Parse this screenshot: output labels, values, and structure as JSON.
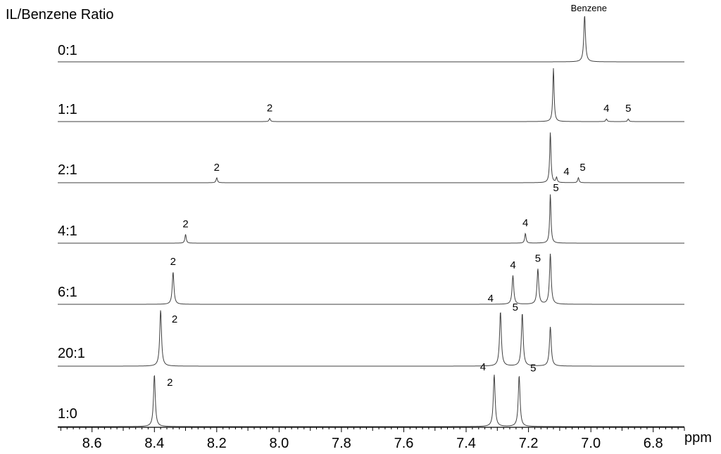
{
  "chart_data": {
    "type": "line",
    "title": "",
    "ylabel": "IL/Benzene Ratio",
    "xlabel": "ppm",
    "xlim": [
      8.71,
      6.7
    ],
    "x_reversed": true,
    "grid": false,
    "xticks": [
      "8.6",
      "8.4",
      "8.2",
      "8.0",
      "7.8",
      "7.6",
      "7.4",
      "7.2",
      "7.0",
      "6.8"
    ],
    "series": [
      {
        "name": "0:1",
        "peaks": [
          {
            "ppm": 7.02,
            "height": 1.0,
            "label": "Benzene"
          }
        ]
      },
      {
        "name": "1:1",
        "peaks": [
          {
            "ppm": 8.03,
            "height": 0.06,
            "label": "2"
          },
          {
            "ppm": 7.12,
            "height": 1.0,
            "label": ""
          },
          {
            "ppm": 6.95,
            "height": 0.05,
            "label": "4"
          },
          {
            "ppm": 6.88,
            "height": 0.05,
            "label": "5"
          }
        ]
      },
      {
        "name": "2:1",
        "peaks": [
          {
            "ppm": 8.2,
            "height": 0.1,
            "label": "2"
          },
          {
            "ppm": 7.13,
            "height": 1.0,
            "label": ""
          },
          {
            "ppm": 7.11,
            "height": 0.1,
            "label": "4"
          },
          {
            "ppm": 7.04,
            "height": 0.1,
            "label": "5"
          }
        ]
      },
      {
        "name": "4:1",
        "peaks": [
          {
            "ppm": 8.3,
            "height": 0.18,
            "label": "2"
          },
          {
            "ppm": 7.21,
            "height": 0.2,
            "label": "4"
          },
          {
            "ppm": 7.13,
            "height": 1.0,
            "label": "5"
          }
        ]
      },
      {
        "name": "6:1",
        "peaks": [
          {
            "ppm": 8.34,
            "height": 0.64,
            "label": "2"
          },
          {
            "ppm": 7.25,
            "height": 0.57,
            "label": "4"
          },
          {
            "ppm": 7.17,
            "height": 0.7,
            "label": "5"
          },
          {
            "ppm": 7.13,
            "height": 1.0,
            "label": ""
          }
        ]
      },
      {
        "name": "20:1",
        "peaks": [
          {
            "ppm": 8.38,
            "height": 1.0,
            "label": "2"
          },
          {
            "ppm": 7.29,
            "height": 0.97,
            "label": "4"
          },
          {
            "ppm": 7.22,
            "height": 0.94,
            "label": "5"
          },
          {
            "ppm": 7.13,
            "height": 0.7,
            "label": ""
          }
        ]
      },
      {
        "name": "1:0",
        "peaks": [
          {
            "ppm": 8.4,
            "height": 1.0,
            "label": "2"
          },
          {
            "ppm": 7.31,
            "height": 1.0,
            "label": "4"
          },
          {
            "ppm": 7.23,
            "height": 0.98,
            "label": "5"
          }
        ]
      }
    ]
  }
}
